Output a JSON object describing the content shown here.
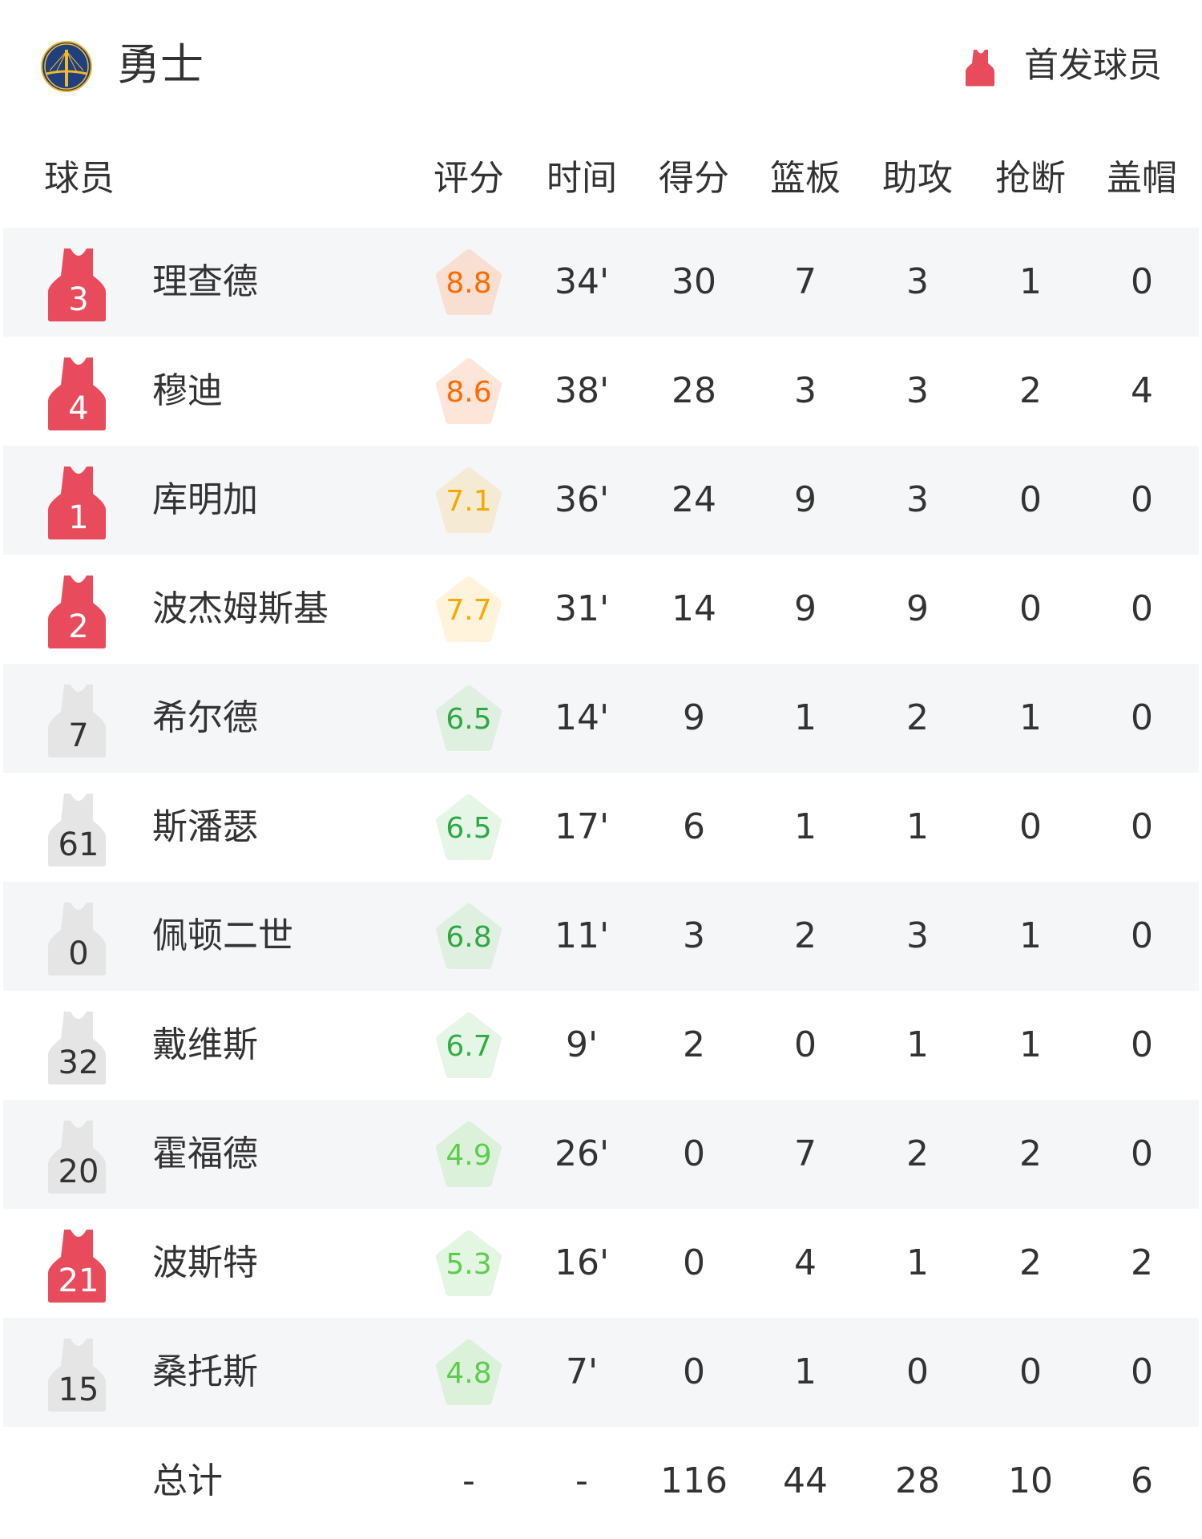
{
  "header": {
    "team_name": "勇士",
    "team_logo_icon": "warriors-bridge-logo-icon",
    "legend_icon": "jersey-icon",
    "legend_label": "首发球员",
    "starter_color": "#e84c5c",
    "bench_color": "#e5e5e5"
  },
  "columns": [
    "球员",
    "评分",
    "时间",
    "得分",
    "篮板",
    "助攻",
    "抢断",
    "盖帽"
  ],
  "players": [
    {
      "number": "3",
      "name": "理查德",
      "starter": true,
      "rating": "8.8",
      "rating_color": "#ff6a00",
      "rating_bg": "#f8dfd2",
      "time": "34'",
      "pts": "30",
      "reb": "7",
      "ast": "3",
      "stl": "1",
      "blk": "0"
    },
    {
      "number": "4",
      "name": "穆迪",
      "starter": true,
      "rating": "8.6",
      "rating_color": "#ff6a00",
      "rating_bg": "#fde5d9",
      "time": "38'",
      "pts": "28",
      "reb": "3",
      "ast": "3",
      "stl": "2",
      "blk": "4"
    },
    {
      "number": "1",
      "name": "库明加",
      "starter": true,
      "rating": "7.1",
      "rating_color": "#f5a800",
      "rating_bg": "#f5ebd5",
      "time": "36'",
      "pts": "24",
      "reb": "9",
      "ast": "3",
      "stl": "0",
      "blk": "0"
    },
    {
      "number": "2",
      "name": "波杰姆斯基",
      "starter": true,
      "rating": "7.7",
      "rating_color": "#f7a900",
      "rating_bg": "#fff3dc",
      "time": "31'",
      "pts": "14",
      "reb": "9",
      "ast": "9",
      "stl": "0",
      "blk": "0"
    },
    {
      "number": "7",
      "name": "希尔德",
      "starter": false,
      "rating": "6.5",
      "rating_color": "#2fa843",
      "rating_bg": "#dff0e0",
      "time": "14'",
      "pts": "9",
      "reb": "1",
      "ast": "2",
      "stl": "1",
      "blk": "0"
    },
    {
      "number": "61",
      "name": "斯潘瑟",
      "starter": false,
      "rating": "6.5",
      "rating_color": "#2fa843",
      "rating_bg": "#e6f6e6",
      "time": "17'",
      "pts": "6",
      "reb": "1",
      "ast": "1",
      "stl": "0",
      "blk": "0"
    },
    {
      "number": "0",
      "name": "佩顿二世",
      "starter": false,
      "rating": "6.8",
      "rating_color": "#2fa843",
      "rating_bg": "#dff0e0",
      "time": "11'",
      "pts": "3",
      "reb": "2",
      "ast": "3",
      "stl": "1",
      "blk": "0"
    },
    {
      "number": "32",
      "name": "戴维斯",
      "starter": false,
      "rating": "6.7",
      "rating_color": "#35ac47",
      "rating_bg": "#e6f6e6",
      "time": "9'",
      "pts": "2",
      "reb": "0",
      "ast": "1",
      "stl": "1",
      "blk": "0"
    },
    {
      "number": "20",
      "name": "霍福德",
      "starter": false,
      "rating": "4.9",
      "rating_color": "#5ccc4c",
      "rating_bg": "#dcf1da",
      "time": "26'",
      "pts": "0",
      "reb": "7",
      "ast": "2",
      "stl": "2",
      "blk": "0"
    },
    {
      "number": "21",
      "name": "波斯特",
      "starter": true,
      "rating": "5.3",
      "rating_color": "#5ccc4c",
      "rating_bg": "#e3f6e2",
      "time": "16'",
      "pts": "0",
      "reb": "4",
      "ast": "1",
      "stl": "2",
      "blk": "2"
    },
    {
      "number": "15",
      "name": "桑托斯",
      "starter": false,
      "rating": "4.8",
      "rating_color": "#5ccc4c",
      "rating_bg": "#dcf1da",
      "time": "7'",
      "pts": "0",
      "reb": "1",
      "ast": "0",
      "stl": "0",
      "blk": "0"
    }
  ],
  "totals": {
    "label": "总计",
    "rating": "-",
    "time": "-",
    "pts": "116",
    "reb": "44",
    "ast": "28",
    "stl": "10",
    "blk": "6"
  }
}
